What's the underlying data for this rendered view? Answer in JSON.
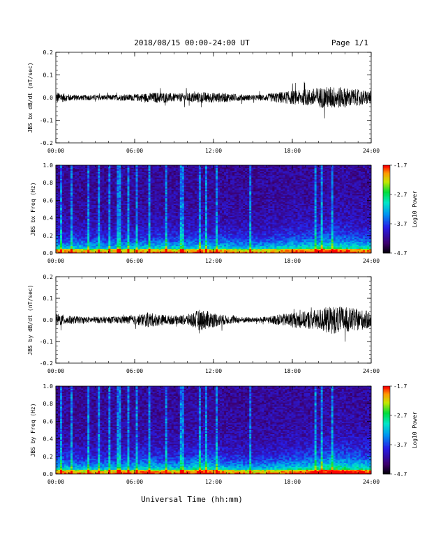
{
  "header": {
    "title": "2018/08/15  00:00-24:00 UT",
    "page": "Page 1/1"
  },
  "footer": {
    "xlabel": "Universal Time (hh:mm)"
  },
  "chart_data": [
    {
      "type": "line",
      "name": "bx-derivative",
      "ylabel": "JBS bx dB/dt (nT/sec)",
      "xlim": [
        0,
        24
      ],
      "ylim": [
        -0.2,
        0.2
      ],
      "x_ticks": [
        "00:00",
        "06:00",
        "12:00",
        "18:00",
        "24:00"
      ],
      "y_ticks": [
        "0.2",
        "0.1",
        "0.0",
        "-0.1",
        "-0.2"
      ],
      "envelope": {
        "hours": [
          0,
          1,
          2,
          4,
          6,
          7,
          8,
          9,
          10,
          11,
          12,
          13,
          14,
          15,
          16,
          17,
          18,
          19,
          20,
          21,
          22,
          23,
          24
        ],
        "amplitude": [
          0.025,
          0.015,
          0.012,
          0.012,
          0.015,
          0.02,
          0.025,
          0.018,
          0.02,
          0.025,
          0.022,
          0.02,
          0.015,
          0.012,
          0.015,
          0.025,
          0.03,
          0.035,
          0.045,
          0.05,
          0.045,
          0.035,
          0.03
        ]
      },
      "color": "#000000"
    },
    {
      "type": "heatmap",
      "name": "bx-spectrogram",
      "ylabel": "JBS bx Freq (Hz)",
      "xlim": [
        0,
        24
      ],
      "ylim": [
        0.0,
        1.0
      ],
      "x_ticks": [
        "00:00",
        "06:00",
        "12:00",
        "18:00",
        "24:00"
      ],
      "y_ticks": [
        "1.0",
        "0.8",
        "0.6",
        "0.4",
        "0.2",
        "0.0"
      ],
      "colorbar": {
        "label": "Log10 Power",
        "ticks": [
          "-1.7",
          "-2.7",
          "-3.7",
          "-4.7"
        ],
        "range": [
          -4.7,
          -1.7
        ]
      }
    },
    {
      "type": "line",
      "name": "by-derivative",
      "ylabel": "JBS by dB/dt (nT/sec)",
      "xlim": [
        0,
        24
      ],
      "ylim": [
        -0.2,
        0.2
      ],
      "x_ticks": [
        "00:00",
        "06:00",
        "12:00",
        "18:00",
        "24:00"
      ],
      "y_ticks": [
        "0.2",
        "0.1",
        "0.0",
        "-0.1",
        "-0.2"
      ],
      "envelope": {
        "hours": [
          0,
          1,
          2,
          4,
          6,
          7,
          8,
          9,
          10,
          11,
          12,
          13,
          14,
          15,
          16,
          17,
          18,
          19,
          20,
          21,
          22,
          23,
          24
        ],
        "amplitude": [
          0.03,
          0.02,
          0.015,
          0.015,
          0.02,
          0.035,
          0.025,
          0.02,
          0.025,
          0.05,
          0.035,
          0.02,
          0.015,
          0.012,
          0.015,
          0.025,
          0.035,
          0.04,
          0.05,
          0.065,
          0.06,
          0.05,
          0.04
        ]
      },
      "color": "#000000"
    },
    {
      "type": "heatmap",
      "name": "by-spectrogram",
      "ylabel": "JBS by Freq (Hz)",
      "xlim": [
        0,
        24
      ],
      "ylim": [
        0.0,
        1.0
      ],
      "x_ticks": [
        "00:00",
        "06:00",
        "12:00",
        "18:00",
        "24:00"
      ],
      "y_ticks": [
        "1.0",
        "0.8",
        "0.6",
        "0.4",
        "0.2",
        "0.0"
      ],
      "colorbar": {
        "label": "Log10 Power",
        "ticks": [
          "-1.7",
          "-2.7",
          "-3.7",
          "-4.7"
        ],
        "range": [
          -4.7,
          -1.7
        ]
      }
    }
  ]
}
